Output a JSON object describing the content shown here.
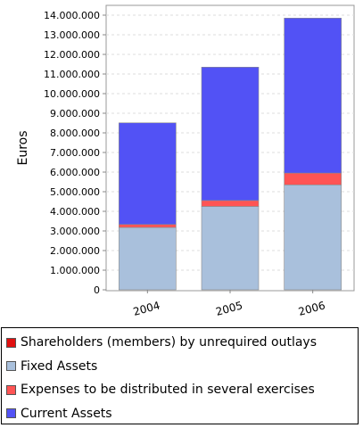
{
  "chart_data": {
    "type": "bar",
    "stacked": true,
    "ylabel": "Euros",
    "xlabel": "",
    "title": "",
    "categories": [
      "2004",
      "2005",
      "2006"
    ],
    "ylim": [
      0,
      14500000
    ],
    "yticks": [
      0,
      1000000,
      2000000,
      3000000,
      4000000,
      5000000,
      6000000,
      7000000,
      8000000,
      9000000,
      10000000,
      11000000,
      12000000,
      13000000,
      14000000
    ],
    "ytick_labels": [
      "0",
      "1.000.000",
      "2.000.000",
      "3.000.000",
      "4.000.000",
      "5.000.000",
      "6.000.000",
      "7.000.000",
      "8.000.000",
      "9.000.000",
      "10.000.000",
      "11.000.000",
      "12.000.000",
      "13.000.000",
      "14.000.000"
    ],
    "grid": true,
    "legend_position": "bottom",
    "series": [
      {
        "name": "Shareholders (members) by unrequired outlays",
        "color": "#e01010",
        "values": [
          0,
          0,
          0
        ]
      },
      {
        "name": "Fixed Assets",
        "color": "#a9c0dc",
        "values": [
          3180000,
          4250000,
          5350000
        ]
      },
      {
        "name": "Expenses to be distributed in several exercises",
        "color": "#ff5454",
        "values": [
          150000,
          300000,
          600000
        ]
      },
      {
        "name": "Current Assets",
        "color": "#5252f5",
        "values": [
          5180000,
          6800000,
          7900000
        ]
      }
    ]
  }
}
